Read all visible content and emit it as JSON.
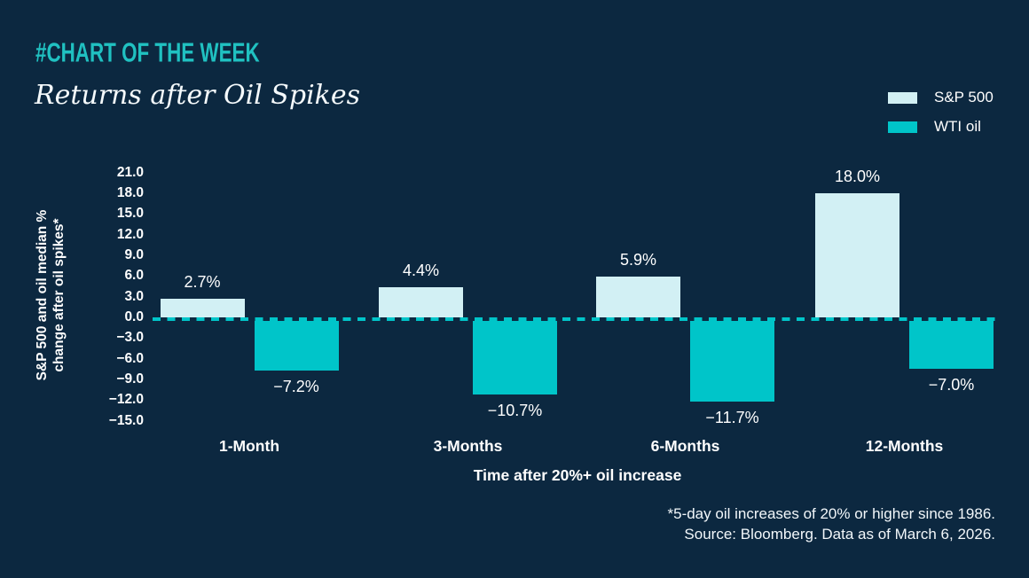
{
  "header": {
    "kicker": "#CHART OF THE WEEK"
  },
  "colors": {
    "background": "#0c2840",
    "accent_teal": "#20c1c1",
    "sp500_bar": "#d2f0f4",
    "wti_bar": "#00c5c9",
    "zero_line": "#00c5c9",
    "text": "#ffffff"
  },
  "legend": [
    {
      "label": "S&P 500",
      "color": "#d2f0f4"
    },
    {
      "label": "WTI oil",
      "color": "#00c5c9"
    }
  ],
  "chart_data": {
    "type": "bar",
    "title": "Returns after Oil Spikes",
    "categories": [
      "1-Month",
      "3-Months",
      "6-Months",
      "12-Months"
    ],
    "series": [
      {
        "name": "S&P 500",
        "color": "#d2f0f4",
        "values": [
          2.7,
          4.4,
          5.9,
          18.0
        ],
        "labels": [
          "2.7%",
          "4.4%",
          "5.9%",
          "18.0%"
        ]
      },
      {
        "name": "WTI oil",
        "color": "#00c5c9",
        "values": [
          -7.2,
          -10.7,
          -11.7,
          -7.0
        ],
        "labels": [
          "−7.2%",
          "−10.7%",
          "−11.7%",
          "−7.0%"
        ]
      }
    ],
    "ylabel_line1": "S&P 500 and oil median %",
    "ylabel_line2": "change after oil spikes*",
    "xlabel": "Time after 20%+ oil increase",
    "yticks": [
      21,
      18,
      15,
      12,
      9,
      6,
      3,
      0,
      -3,
      -6,
      -9,
      -12,
      -15
    ],
    "ytick_labels": [
      "21.0",
      "18.0",
      "15.0",
      "12.0",
      "9.0",
      "6.0",
      "3.0",
      "0.0",
      "−3.0",
      "−6.0",
      "−9.0",
      "−12.0",
      "−15.0"
    ],
    "ylim": [
      -15,
      21
    ],
    "grid": "off",
    "legend_position": "top-right",
    "zero_line_style": "dashed"
  },
  "footnotes": [
    "*5-day oil increases of 20% or higher since 1986.",
    "Source: Bloomberg. Data as of March 6, 2026."
  ]
}
